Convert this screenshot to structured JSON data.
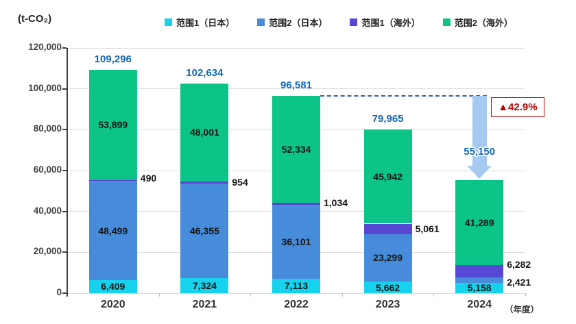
{
  "meta": {
    "unit_label": "(t-CO₂)",
    "x_axis_suffix": "（年度）"
  },
  "chart_data": {
    "type": "bar",
    "stacked": true,
    "categories": [
      "2020",
      "2021",
      "2022",
      "2023",
      "2024"
    ],
    "series": [
      {
        "name": "范围1（日本）",
        "color": "#16d2ec",
        "values": [
          6409,
          7324,
          7113,
          5662,
          5158
        ]
      },
      {
        "name": "范围2（日本）",
        "color": "#478cda",
        "values": [
          48499,
          46355,
          36101,
          23299,
          2421
        ]
      },
      {
        "name": "范围1（海外）",
        "color": "#5648d4",
        "values": [
          490,
          954,
          1034,
          5061,
          6282
        ]
      },
      {
        "name": "范围2（海外）",
        "color": "#0cc487",
        "values": [
          53899,
          48001,
          52334,
          45942,
          41289
        ]
      }
    ],
    "totals": [
      109296,
      102634,
      96581,
      79965,
      55150
    ],
    "ylim": [
      0,
      120000
    ],
    "ytick_interval": 20000,
    "ytick_labels": [
      "0",
      "20,000",
      "40,000",
      "60,000",
      "80,000",
      "100,000",
      "120,000"
    ],
    "grid": "horizontal",
    "legend_position": "top",
    "outside_labels": [
      {
        "series": 2,
        "category": 0,
        "dy": -3
      },
      {
        "series": 2,
        "category": 1,
        "dy": 0
      },
      {
        "series": 2,
        "category": 2,
        "dy": -2
      },
      {
        "series": 2,
        "category": 3,
        "dy": 0
      },
      {
        "series": 2,
        "category": 4,
        "dy": -10
      },
      {
        "series": 1,
        "category": 4,
        "dy": 3
      }
    ],
    "annotation": {
      "baseline_category": 2,
      "baseline_value": 96581,
      "arrow_category": 4,
      "pct_label": "▲42.9%"
    },
    "colors": {
      "total_label": "#1468b8",
      "segment_label": "#141414",
      "axis": "#404040",
      "grid": "#dcdcdc",
      "dashed_line": "#2e5fa5",
      "arrow_fill": "#a6c9f1",
      "reduction_red": "#c00000"
    }
  }
}
